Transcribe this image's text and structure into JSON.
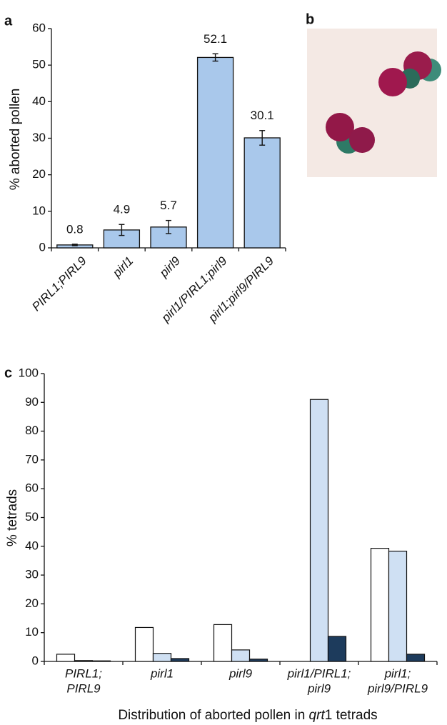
{
  "panels": [
    "a",
    "b",
    "c"
  ],
  "chart_data": [
    {
      "type": "bar",
      "ylabel": "% aborted pollen",
      "categories": [
        [
          "PIRL1;PIRL9"
        ],
        [
          "pirl1"
        ],
        [
          "pirl9"
        ],
        [
          "pirl1/PIRL1;pirl9"
        ],
        [
          "pirl1;pirl9/PIRL9"
        ]
      ],
      "values": [
        0.8,
        4.9,
        5.7,
        52.1,
        30.1
      ],
      "errors": [
        0.2,
        1.5,
        1.8,
        1.0,
        2.0
      ],
      "color": "#a9c8eb",
      "ylim": [
        0,
        60
      ],
      "yticks": [
        0,
        10,
        20,
        30,
        40,
        50,
        60
      ]
    },
    {
      "type": "grouped-bar",
      "ylabel": "% tetrads",
      "xlabel": [
        "Distribution of aborted pollen in ",
        "qrt",
        "1 tetrads"
      ],
      "categories": [
        [
          "PIRL1;",
          "PIRL9"
        ],
        [
          "pirl1"
        ],
        [
          "pirl9"
        ],
        [
          "pirl1/PIRL1;",
          "pirl9"
        ],
        [
          "pirl1;",
          "pirl9/PIRL9"
        ]
      ],
      "series": [
        {
          "color": "#ffffff",
          "values": [
            2.5,
            11.8,
            12.8,
            0,
            39.3
          ]
        },
        {
          "color": "#cfe0f3",
          "values": [
            0.3,
            2.8,
            4.0,
            91,
            38.3
          ]
        },
        {
          "color": "#1d3b5c",
          "values": [
            0.2,
            1.0,
            0.8,
            8.7,
            2.5
          ]
        }
      ],
      "ylim": [
        0,
        100
      ],
      "yticks": [
        0,
        10,
        20,
        30,
        40,
        50,
        60,
        70,
        80,
        90,
        100
      ]
    }
  ]
}
